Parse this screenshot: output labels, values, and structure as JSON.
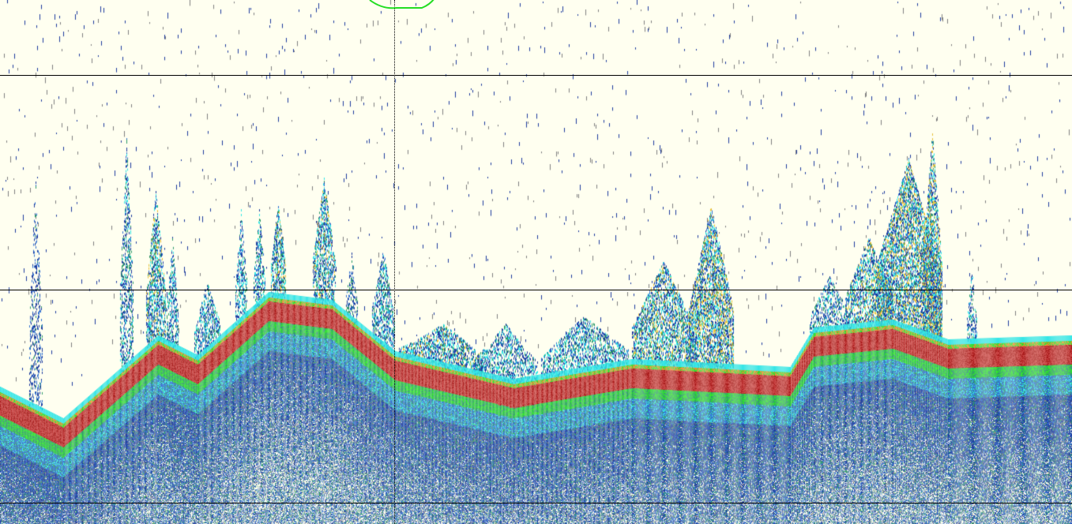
{
  "colors": {
    "background": "#FFFFF0",
    "grid_line": "#000000",
    "cursor_line": "#000000",
    "marker": "#22DD22",
    "echo_scale": [
      "#808080",
      "#1E3C9E",
      "#2F6FD0",
      "#2E9A6A",
      "#2BE02B",
      "#35E6E6",
      "#E9C23A",
      "#E58A2E",
      "#C84040",
      "#A81818"
    ]
  },
  "echogram": {
    "depth_lines": 3,
    "cursor": "vertical-dotted",
    "marker": "green-outline-top"
  }
}
